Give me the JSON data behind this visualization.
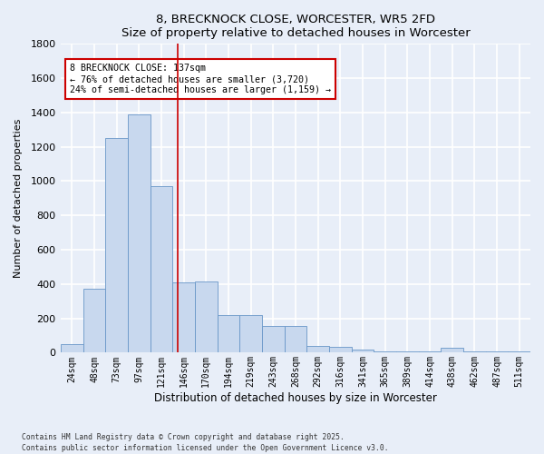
{
  "title": "8, BRECKNOCK CLOSE, WORCESTER, WR5 2FD",
  "subtitle": "Size of property relative to detached houses in Worcester",
  "xlabel": "Distribution of detached houses by size in Worcester",
  "ylabel": "Number of detached properties",
  "categories": [
    "24sqm",
    "48sqm",
    "73sqm",
    "97sqm",
    "121sqm",
    "146sqm",
    "170sqm",
    "194sqm",
    "219sqm",
    "243sqm",
    "268sqm",
    "292sqm",
    "316sqm",
    "341sqm",
    "365sqm",
    "389sqm",
    "414sqm",
    "438sqm",
    "462sqm",
    "487sqm",
    "511sqm"
  ],
  "values": [
    50,
    375,
    1250,
    1390,
    970,
    410,
    415,
    220,
    220,
    155,
    155,
    40,
    35,
    20,
    10,
    8,
    5,
    30,
    5,
    5,
    5
  ],
  "bar_color": "#c8d8ee",
  "bar_edge_color": "#6896c8",
  "red_line_x": 4.72,
  "annotation_text": "8 BRECKNOCK CLOSE: 137sqm\n← 76% of detached houses are smaller (3,720)\n24% of semi-detached houses are larger (1,159) →",
  "annotation_box_color": "#ffffff",
  "annotation_box_edge_color": "#cc0000",
  "ylim": [
    0,
    1800
  ],
  "yticks": [
    0,
    200,
    400,
    600,
    800,
    1000,
    1200,
    1400,
    1600,
    1800
  ],
  "background_color": "#e8eef8",
  "grid_color": "#ffffff",
  "footer_line1": "Contains HM Land Registry data © Crown copyright and database right 2025.",
  "footer_line2": "Contains public sector information licensed under the Open Government Licence v3.0."
}
